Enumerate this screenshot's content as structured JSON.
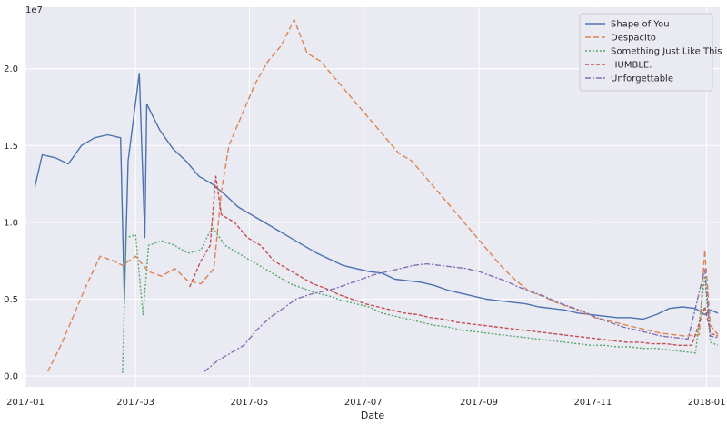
{
  "chart_data": {
    "type": "line",
    "title": "",
    "xlabel": "Date",
    "ylabel": "",
    "y_offset_label": "1e7",
    "xlim": [
      "2017-01-01",
      "2018-01-08"
    ],
    "ylim": [
      -0.07,
      2.4
    ],
    "x_ticks": [
      {
        "date": "2017-01-01",
        "label": "2017-01"
      },
      {
        "date": "2017-03-01",
        "label": "2017-03"
      },
      {
        "date": "2017-05-01",
        "label": "2017-05"
      },
      {
        "date": "2017-07-01",
        "label": "2017-07"
      },
      {
        "date": "2017-09-01",
        "label": "2017-09"
      },
      {
        "date": "2017-11-01",
        "label": "2017-11"
      },
      {
        "date": "2018-01-01",
        "label": "2018-01"
      }
    ],
    "y_ticks": [
      {
        "value": 0.0,
        "label": "0.0"
      },
      {
        "value": 0.5,
        "label": "0.5"
      },
      {
        "value": 1.0,
        "label": "1.0"
      },
      {
        "value": 1.5,
        "label": "1.5"
      },
      {
        "value": 2.0,
        "label": "2.0"
      }
    ],
    "grid": true,
    "background": "#eaeaf2",
    "legend_position": "top-right",
    "series": [
      {
        "name": "Shape of You",
        "color": "#4c72b0",
        "dash": "",
        "points": [
          [
            "2017-01-06",
            1.23
          ],
          [
            "2017-01-10",
            1.44
          ],
          [
            "2017-01-17",
            1.42
          ],
          [
            "2017-01-24",
            1.38
          ],
          [
            "2017-01-31",
            1.5
          ],
          [
            "2017-02-07",
            1.55
          ],
          [
            "2017-02-14",
            1.57
          ],
          [
            "2017-02-21",
            1.55
          ],
          [
            "2017-02-23",
            0.5
          ],
          [
            "2017-02-25",
            1.4
          ],
          [
            "2017-03-03",
            1.97
          ],
          [
            "2017-03-06",
            0.9
          ],
          [
            "2017-03-07",
            1.77
          ],
          [
            "2017-03-14",
            1.6
          ],
          [
            "2017-03-21",
            1.48
          ],
          [
            "2017-03-28",
            1.4
          ],
          [
            "2017-04-04",
            1.3
          ],
          [
            "2017-04-11",
            1.25
          ],
          [
            "2017-04-18",
            1.18
          ],
          [
            "2017-04-25",
            1.1
          ],
          [
            "2017-05-02",
            1.05
          ],
          [
            "2017-05-09",
            1.0
          ],
          [
            "2017-05-16",
            0.95
          ],
          [
            "2017-05-23",
            0.9
          ],
          [
            "2017-05-30",
            0.85
          ],
          [
            "2017-06-06",
            0.8
          ],
          [
            "2017-06-13",
            0.76
          ],
          [
            "2017-06-20",
            0.72
          ],
          [
            "2017-06-27",
            0.7
          ],
          [
            "2017-07-04",
            0.68
          ],
          [
            "2017-07-11",
            0.67
          ],
          [
            "2017-07-18",
            0.63
          ],
          [
            "2017-07-25",
            0.62
          ],
          [
            "2017-08-01",
            0.61
          ],
          [
            "2017-08-08",
            0.59
          ],
          [
            "2017-08-15",
            0.56
          ],
          [
            "2017-08-22",
            0.54
          ],
          [
            "2017-08-29",
            0.52
          ],
          [
            "2017-09-05",
            0.5
          ],
          [
            "2017-09-12",
            0.49
          ],
          [
            "2017-09-19",
            0.48
          ],
          [
            "2017-09-26",
            0.47
          ],
          [
            "2017-10-03",
            0.45
          ],
          [
            "2017-10-10",
            0.44
          ],
          [
            "2017-10-17",
            0.43
          ],
          [
            "2017-10-24",
            0.41
          ],
          [
            "2017-10-31",
            0.4
          ],
          [
            "2017-11-07",
            0.39
          ],
          [
            "2017-11-14",
            0.38
          ],
          [
            "2017-11-21",
            0.38
          ],
          [
            "2017-11-28",
            0.37
          ],
          [
            "2017-12-05",
            0.4
          ],
          [
            "2017-12-12",
            0.44
          ],
          [
            "2017-12-19",
            0.45
          ],
          [
            "2017-12-26",
            0.44
          ],
          [
            "2017-12-31",
            0.4
          ],
          [
            "2018-01-03",
            0.43
          ],
          [
            "2018-01-07",
            0.41
          ]
        ]
      },
      {
        "name": "Despacito",
        "color": "#dd8452",
        "dash": "6,3",
        "points": [
          [
            "2017-01-13",
            0.03
          ],
          [
            "2017-01-20",
            0.2
          ],
          [
            "2017-01-27",
            0.4
          ],
          [
            "2017-02-03",
            0.6
          ],
          [
            "2017-02-10",
            0.78
          ],
          [
            "2017-02-17",
            0.75
          ],
          [
            "2017-02-22",
            0.72
          ],
          [
            "2017-03-01",
            0.78
          ],
          [
            "2017-03-08",
            0.68
          ],
          [
            "2017-03-15",
            0.65
          ],
          [
            "2017-03-22",
            0.7
          ],
          [
            "2017-03-29",
            0.62
          ],
          [
            "2017-04-05",
            0.6
          ],
          [
            "2017-04-12",
            0.7
          ],
          [
            "2017-04-16",
            1.2
          ],
          [
            "2017-04-20",
            1.5
          ],
          [
            "2017-04-27",
            1.7
          ],
          [
            "2017-05-04",
            1.9
          ],
          [
            "2017-05-11",
            2.05
          ],
          [
            "2017-05-18",
            2.15
          ],
          [
            "2017-05-25",
            2.32
          ],
          [
            "2017-06-01",
            2.1
          ],
          [
            "2017-06-08",
            2.05
          ],
          [
            "2017-06-15",
            1.95
          ],
          [
            "2017-06-22",
            1.85
          ],
          [
            "2017-06-29",
            1.75
          ],
          [
            "2017-07-06",
            1.65
          ],
          [
            "2017-07-13",
            1.55
          ],
          [
            "2017-07-20",
            1.45
          ],
          [
            "2017-07-27",
            1.4
          ],
          [
            "2017-08-03",
            1.3
          ],
          [
            "2017-08-10",
            1.2
          ],
          [
            "2017-08-17",
            1.1
          ],
          [
            "2017-08-24",
            1.0
          ],
          [
            "2017-08-31",
            0.9
          ],
          [
            "2017-09-07",
            0.8
          ],
          [
            "2017-09-14",
            0.7
          ],
          [
            "2017-09-21",
            0.62
          ],
          [
            "2017-09-28",
            0.55
          ],
          [
            "2017-10-05",
            0.52
          ],
          [
            "2017-10-12",
            0.48
          ],
          [
            "2017-10-19",
            0.45
          ],
          [
            "2017-10-26",
            0.42
          ],
          [
            "2017-11-02",
            0.38
          ],
          [
            "2017-11-09",
            0.36
          ],
          [
            "2017-11-16",
            0.34
          ],
          [
            "2017-11-23",
            0.32
          ],
          [
            "2017-11-30",
            0.3
          ],
          [
            "2017-12-07",
            0.28
          ],
          [
            "2017-12-14",
            0.27
          ],
          [
            "2017-12-21",
            0.26
          ],
          [
            "2017-12-28",
            0.27
          ],
          [
            "2017-12-31",
            0.82
          ],
          [
            "2018-01-03",
            0.33
          ],
          [
            "2018-01-07",
            0.27
          ]
        ]
      },
      {
        "name": "Something Just Like This",
        "color": "#55a868",
        "dash": "2,2",
        "points": [
          [
            "2017-02-22",
            0.02
          ],
          [
            "2017-02-24",
            0.9
          ],
          [
            "2017-03-01",
            0.92
          ],
          [
            "2017-03-05",
            0.4
          ],
          [
            "2017-03-08",
            0.85
          ],
          [
            "2017-03-15",
            0.88
          ],
          [
            "2017-03-22",
            0.85
          ],
          [
            "2017-03-29",
            0.8
          ],
          [
            "2017-04-05",
            0.82
          ],
          [
            "2017-04-11",
            0.97
          ],
          [
            "2017-04-18",
            0.85
          ],
          [
            "2017-04-25",
            0.8
          ],
          [
            "2017-05-02",
            0.75
          ],
          [
            "2017-05-09",
            0.7
          ],
          [
            "2017-05-16",
            0.65
          ],
          [
            "2017-05-23",
            0.6
          ],
          [
            "2017-05-30",
            0.57
          ],
          [
            "2017-06-06",
            0.54
          ],
          [
            "2017-06-13",
            0.52
          ],
          [
            "2017-06-20",
            0.49
          ],
          [
            "2017-06-27",
            0.47
          ],
          [
            "2017-07-04",
            0.45
          ],
          [
            "2017-07-11",
            0.41
          ],
          [
            "2017-07-18",
            0.39
          ],
          [
            "2017-07-25",
            0.37
          ],
          [
            "2017-08-01",
            0.35
          ],
          [
            "2017-08-08",
            0.33
          ],
          [
            "2017-08-15",
            0.32
          ],
          [
            "2017-08-22",
            0.3
          ],
          [
            "2017-08-29",
            0.29
          ],
          [
            "2017-09-05",
            0.28
          ],
          [
            "2017-09-12",
            0.27
          ],
          [
            "2017-09-19",
            0.26
          ],
          [
            "2017-09-26",
            0.25
          ],
          [
            "2017-10-03",
            0.24
          ],
          [
            "2017-10-10",
            0.23
          ],
          [
            "2017-10-17",
            0.22
          ],
          [
            "2017-10-24",
            0.21
          ],
          [
            "2017-10-31",
            0.2
          ],
          [
            "2017-11-07",
            0.2
          ],
          [
            "2017-11-14",
            0.19
          ],
          [
            "2017-11-21",
            0.19
          ],
          [
            "2017-11-28",
            0.18
          ],
          [
            "2017-12-05",
            0.18
          ],
          [
            "2017-12-12",
            0.17
          ],
          [
            "2017-12-19",
            0.16
          ],
          [
            "2017-12-26",
            0.15
          ],
          [
            "2017-12-31",
            0.65
          ],
          [
            "2018-01-03",
            0.22
          ],
          [
            "2018-01-07",
            0.2
          ]
        ]
      },
      {
        "name": "HUMBLE.",
        "color": "#c44e52",
        "dash": "4,2",
        "points": [
          [
            "2017-03-30",
            0.58
          ],
          [
            "2017-04-05",
            0.75
          ],
          [
            "2017-04-10",
            0.85
          ],
          [
            "2017-04-13",
            1.3
          ],
          [
            "2017-04-16",
            1.05
          ],
          [
            "2017-04-23",
            1.0
          ],
          [
            "2017-04-30",
            0.9
          ],
          [
            "2017-05-07",
            0.85
          ],
          [
            "2017-05-14",
            0.75
          ],
          [
            "2017-05-21",
            0.7
          ],
          [
            "2017-05-28",
            0.65
          ],
          [
            "2017-06-04",
            0.6
          ],
          [
            "2017-06-11",
            0.57
          ],
          [
            "2017-06-18",
            0.53
          ],
          [
            "2017-06-25",
            0.5
          ],
          [
            "2017-07-02",
            0.47
          ],
          [
            "2017-07-09",
            0.45
          ],
          [
            "2017-07-16",
            0.43
          ],
          [
            "2017-07-23",
            0.41
          ],
          [
            "2017-07-30",
            0.4
          ],
          [
            "2017-08-06",
            0.38
          ],
          [
            "2017-08-13",
            0.37
          ],
          [
            "2017-08-20",
            0.35
          ],
          [
            "2017-08-27",
            0.34
          ],
          [
            "2017-09-03",
            0.33
          ],
          [
            "2017-09-10",
            0.32
          ],
          [
            "2017-09-17",
            0.31
          ],
          [
            "2017-09-24",
            0.3
          ],
          [
            "2017-10-01",
            0.29
          ],
          [
            "2017-10-08",
            0.28
          ],
          [
            "2017-10-15",
            0.27
          ],
          [
            "2017-10-22",
            0.26
          ],
          [
            "2017-10-29",
            0.25
          ],
          [
            "2017-11-05",
            0.24
          ],
          [
            "2017-11-12",
            0.23
          ],
          [
            "2017-11-19",
            0.22
          ],
          [
            "2017-11-26",
            0.22
          ],
          [
            "2017-12-03",
            0.21
          ],
          [
            "2017-12-10",
            0.21
          ],
          [
            "2017-12-17",
            0.2
          ],
          [
            "2017-12-24",
            0.2
          ],
          [
            "2017-12-31",
            0.45
          ],
          [
            "2018-01-03",
            0.28
          ],
          [
            "2018-01-07",
            0.26
          ]
        ]
      },
      {
        "name": "Unforgettable",
        "color": "#8172b3",
        "dash": "6,2,2,2",
        "points": [
          [
            "2017-04-07",
            0.03
          ],
          [
            "2017-04-14",
            0.1
          ],
          [
            "2017-04-21",
            0.15
          ],
          [
            "2017-04-28",
            0.2
          ],
          [
            "2017-05-05",
            0.3
          ],
          [
            "2017-05-12",
            0.38
          ],
          [
            "2017-05-19",
            0.44
          ],
          [
            "2017-05-26",
            0.5
          ],
          [
            "2017-06-02",
            0.53
          ],
          [
            "2017-06-09",
            0.55
          ],
          [
            "2017-06-16",
            0.57
          ],
          [
            "2017-06-23",
            0.6
          ],
          [
            "2017-06-30",
            0.63
          ],
          [
            "2017-07-07",
            0.66
          ],
          [
            "2017-07-14",
            0.68
          ],
          [
            "2017-07-21",
            0.7
          ],
          [
            "2017-07-28",
            0.72
          ],
          [
            "2017-08-04",
            0.73
          ],
          [
            "2017-08-11",
            0.72
          ],
          [
            "2017-08-18",
            0.71
          ],
          [
            "2017-08-25",
            0.7
          ],
          [
            "2017-09-01",
            0.68
          ],
          [
            "2017-09-08",
            0.65
          ],
          [
            "2017-09-15",
            0.62
          ],
          [
            "2017-09-22",
            0.58
          ],
          [
            "2017-09-29",
            0.55
          ],
          [
            "2017-10-06",
            0.52
          ],
          [
            "2017-10-13",
            0.48
          ],
          [
            "2017-10-20",
            0.45
          ],
          [
            "2017-10-27",
            0.42
          ],
          [
            "2017-11-03",
            0.38
          ],
          [
            "2017-11-10",
            0.35
          ],
          [
            "2017-11-17",
            0.32
          ],
          [
            "2017-11-24",
            0.3
          ],
          [
            "2017-12-01",
            0.28
          ],
          [
            "2017-12-08",
            0.26
          ],
          [
            "2017-12-15",
            0.25
          ],
          [
            "2017-12-22",
            0.24
          ],
          [
            "2017-12-31",
            0.7
          ],
          [
            "2018-01-03",
            0.26
          ],
          [
            "2018-01-07",
            0.25
          ]
        ]
      }
    ]
  }
}
